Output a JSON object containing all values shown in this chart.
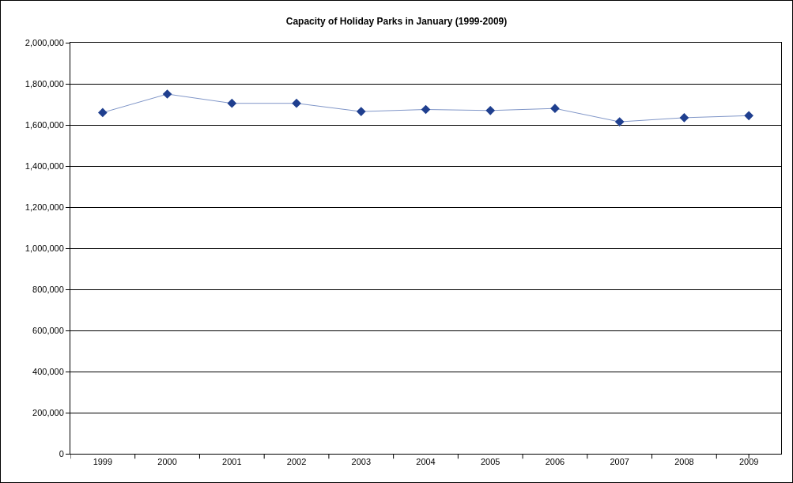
{
  "chart_data": {
    "type": "line",
    "title": "Capacity of Holiday Parks in January (1999-2009)",
    "categories": [
      "1999",
      "2000",
      "2001",
      "2002",
      "2003",
      "2004",
      "2005",
      "2006",
      "2007",
      "2008",
      "2009"
    ],
    "series": [
      {
        "color": "#1f3f8f",
        "values": [
          1660000,
          1750000,
          1705000,
          1705000,
          1665000,
          1675000,
          1670000,
          1680000,
          1615000,
          1635000,
          1645000
        ]
      }
    ],
    "ylim": [
      0,
      2000000
    ],
    "yticks": [
      {
        "value": 0,
        "label": "0"
      },
      {
        "value": 200000,
        "label": "200,000"
      },
      {
        "value": 400000,
        "label": "400,000"
      },
      {
        "value": 600000,
        "label": "600,000"
      },
      {
        "value": 800000,
        "label": "800,000"
      },
      {
        "value": 1000000,
        "label": "1,000,000"
      },
      {
        "value": 1200000,
        "label": "1,200,000"
      },
      {
        "value": 1400000,
        "label": "1,400,000"
      },
      {
        "value": 1600000,
        "label": "1,600,000"
      },
      {
        "value": 1800000,
        "label": "1,800,000"
      },
      {
        "value": 2000000,
        "label": "2,000,000"
      }
    ],
    "grid": "y",
    "marker": "diamond",
    "line_style": "solid"
  }
}
